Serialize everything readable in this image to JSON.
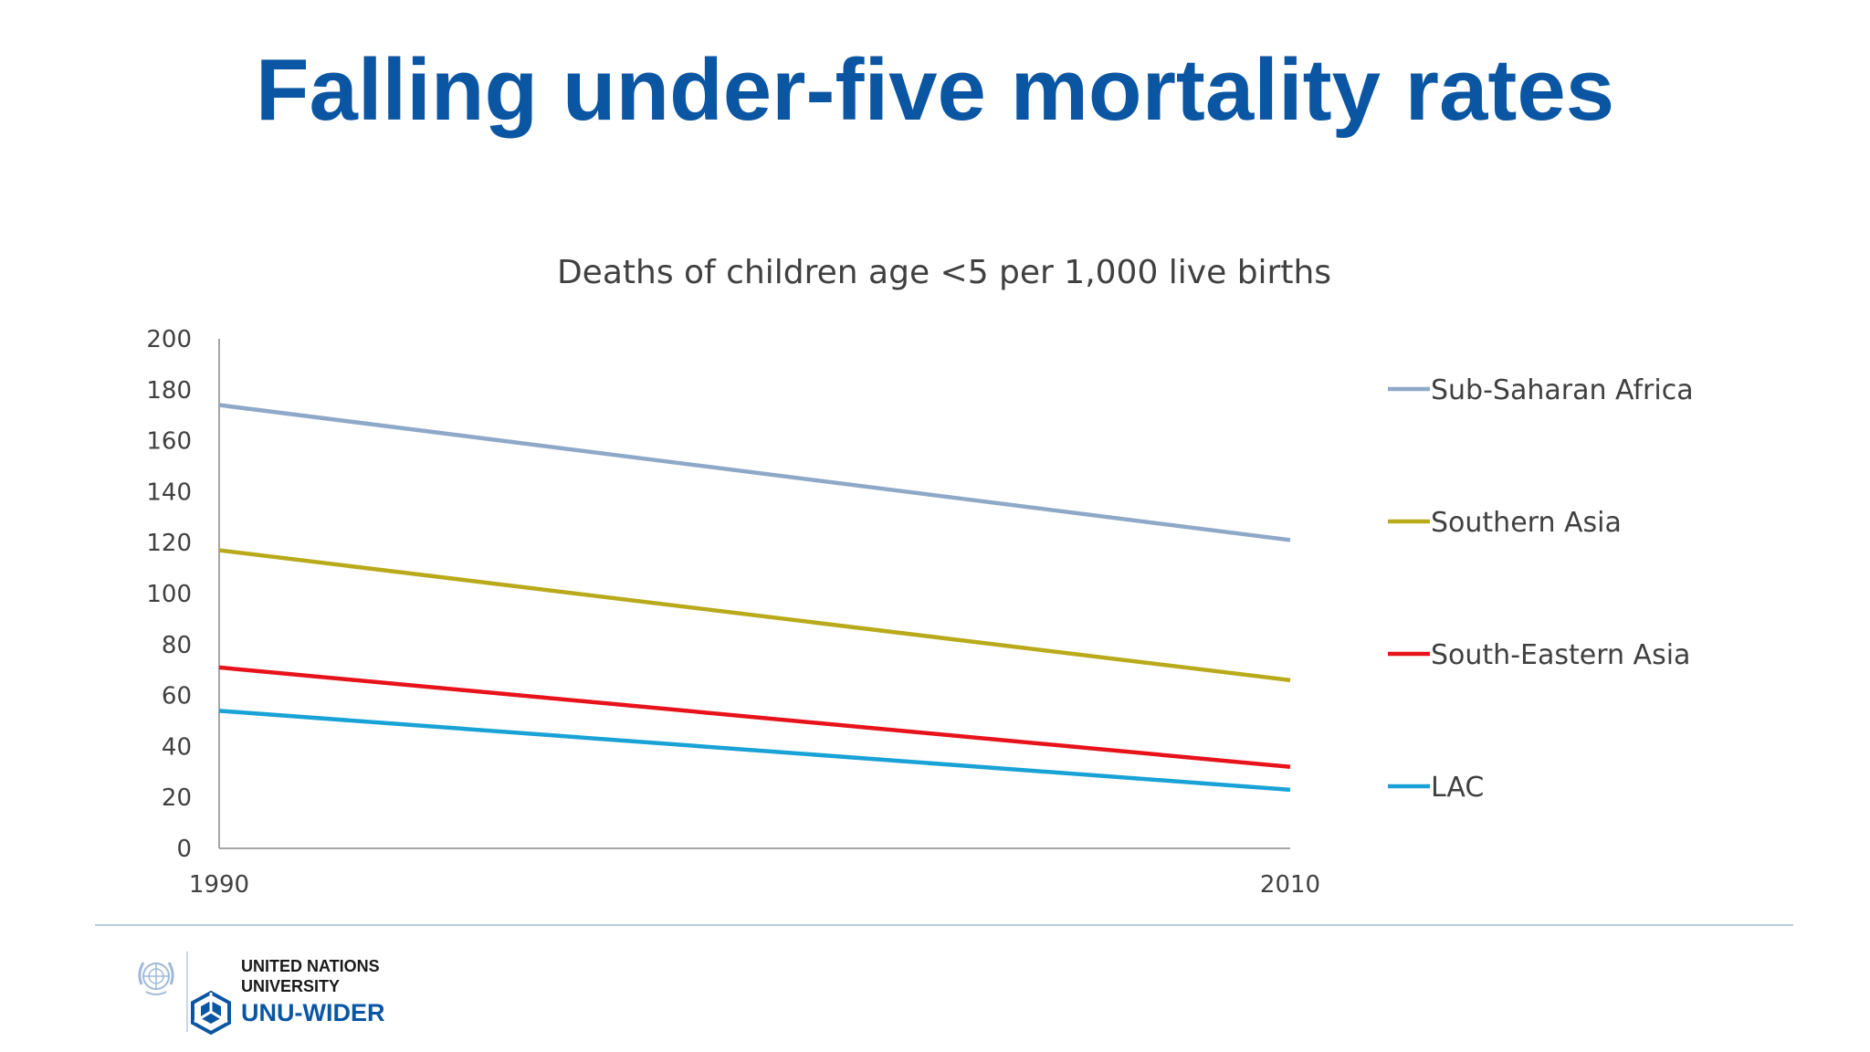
{
  "slide": {
    "title": "Falling under-five mortality rates"
  },
  "colors": {
    "title": "#0b56a3",
    "axis": "#a6a6a6",
    "footer_rule": "#b8cde3"
  },
  "chart_data": {
    "type": "line",
    "title": "Deaths of children age <5 per 1,000 live births",
    "xlabel": "",
    "ylabel": "",
    "categories": [
      "1990",
      "2010"
    ],
    "ylim": [
      0,
      200
    ],
    "yticks": [
      0,
      20,
      40,
      60,
      80,
      100,
      120,
      140,
      160,
      180,
      200
    ],
    "grid": false,
    "legend_position": "right",
    "series": [
      {
        "name": "Sub-Saharan Africa",
        "values": [
          174,
          121
        ],
        "color": "#8ea9c8"
      },
      {
        "name": "Southern Asia",
        "values": [
          117,
          66
        ],
        "color": "#b9aa1b"
      },
      {
        "name": "South-Eastern Asia",
        "values": [
          71,
          32
        ],
        "color": "#e8121b"
      },
      {
        "name": "LAC",
        "values": [
          54,
          23
        ],
        "color": "#19a2d6"
      }
    ]
  },
  "footer": {
    "logo_line_1": "UNITED NATIONS",
    "logo_line_2": "UNIVERSITY",
    "logo_line_3": "UNU-WIDER",
    "icons": [
      "un-emblem-icon",
      "unu-wider-logo-icon"
    ]
  }
}
